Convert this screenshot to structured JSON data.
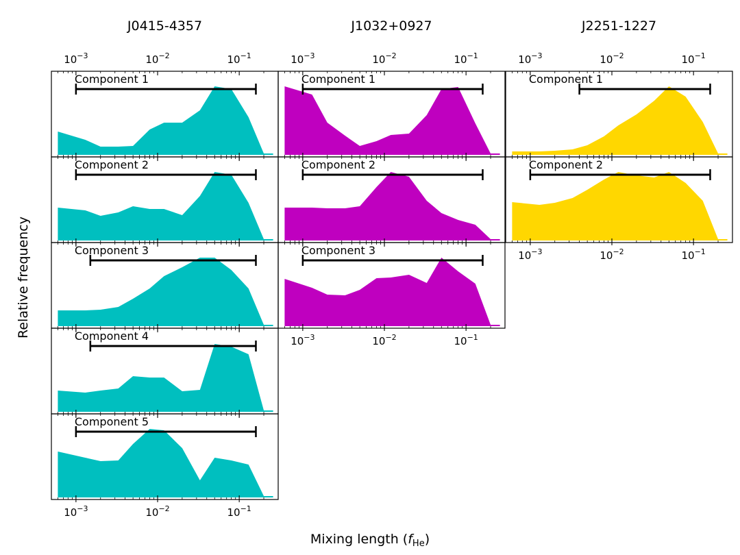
{
  "figure": {
    "ylabel": "Relative frequency",
    "xlabel_main": "Mixing length (",
    "xlabel_symbol": "f",
    "xlabel_sub": "He",
    "xlabel_close": ")",
    "tick_base": "10",
    "tick_exponents": [
      "−3",
      "−2",
      "−1"
    ]
  },
  "chart_data": [
    {
      "type": "area",
      "title": "J0415-4357",
      "color": "#00bfbf",
      "xscale": "log",
      "xlim": [
        0.0005,
        0.3
      ],
      "ylim": [
        0,
        1
      ],
      "components": [
        {
          "label": "Component 1",
          "range": [
            0.001,
            0.16
          ],
          "x": [
            0.0006,
            0.0013,
            0.002,
            0.0033,
            0.005,
            0.008,
            0.012,
            0.02,
            0.033,
            0.05,
            0.08,
            0.13,
            0.2,
            0.26
          ],
          "y": [
            0.34,
            0.22,
            0.12,
            0.12,
            0.13,
            0.37,
            0.47,
            0.47,
            0.65,
            1.0,
            0.96,
            0.55,
            0.02,
            0.02
          ]
        },
        {
          "label": "Component 2",
          "range": [
            0.001,
            0.16
          ],
          "x": [
            0.0006,
            0.0013,
            0.002,
            0.0033,
            0.005,
            0.008,
            0.012,
            0.02,
            0.033,
            0.05,
            0.08,
            0.13,
            0.2,
            0.26
          ],
          "y": [
            0.48,
            0.44,
            0.36,
            0.41,
            0.5,
            0.46,
            0.46,
            0.37,
            0.65,
            1.0,
            0.96,
            0.55,
            0.02,
            0.02
          ]
        },
        {
          "label": "Component 3",
          "range": [
            0.0015,
            0.16
          ],
          "x": [
            0.0006,
            0.0013,
            0.002,
            0.0033,
            0.005,
            0.008,
            0.012,
            0.02,
            0.033,
            0.05,
            0.08,
            0.13,
            0.2,
            0.26
          ],
          "y": [
            0.23,
            0.23,
            0.24,
            0.28,
            0.4,
            0.55,
            0.73,
            0.86,
            1.0,
            1.0,
            0.82,
            0.55,
            0.02,
            0.02
          ]
        },
        {
          "label": "Component 4",
          "range": [
            0.0015,
            0.16
          ],
          "x": [
            0.0006,
            0.0013,
            0.002,
            0.0033,
            0.005,
            0.008,
            0.012,
            0.02,
            0.033,
            0.05,
            0.08,
            0.13,
            0.2,
            0.26
          ],
          "y": [
            0.31,
            0.28,
            0.31,
            0.34,
            0.52,
            0.5,
            0.5,
            0.3,
            0.32,
            0.99,
            0.95,
            0.84,
            0.02,
            0.02
          ]
        },
        {
          "label": "Component 5",
          "range": [
            0.001,
            0.16
          ],
          "x": [
            0.0006,
            0.0013,
            0.002,
            0.0033,
            0.005,
            0.008,
            0.012,
            0.02,
            0.033,
            0.05,
            0.08,
            0.13,
            0.2,
            0.26
          ],
          "y": [
            0.67,
            0.58,
            0.53,
            0.54,
            0.78,
            1.0,
            0.98,
            0.72,
            0.25,
            0.58,
            0.54,
            0.48,
            0.02,
            0.02
          ]
        }
      ]
    },
    {
      "type": "area",
      "title": "J1032+0927",
      "color": "#bf00bf",
      "xscale": "log",
      "xlim": [
        0.0005,
        0.3
      ],
      "ylim": [
        0,
        1
      ],
      "components": [
        {
          "label": "Component 1",
          "range": [
            0.001,
            0.16
          ],
          "x": [
            0.0006,
            0.0013,
            0.002,
            0.0033,
            0.005,
            0.008,
            0.012,
            0.02,
            0.033,
            0.05,
            0.08,
            0.13,
            0.2,
            0.26
          ],
          "y": [
            1.0,
            0.88,
            0.47,
            0.28,
            0.13,
            0.2,
            0.29,
            0.31,
            0.58,
            0.96,
            0.99,
            0.46,
            0.02,
            0.02
          ]
        },
        {
          "label": "Component 2",
          "range": [
            0.001,
            0.16
          ],
          "x": [
            0.0006,
            0.0013,
            0.002,
            0.0033,
            0.005,
            0.008,
            0.012,
            0.02,
            0.033,
            0.05,
            0.08,
            0.13,
            0.2,
            0.26
          ],
          "y": [
            0.48,
            0.48,
            0.47,
            0.47,
            0.5,
            0.78,
            1.0,
            0.93,
            0.58,
            0.4,
            0.3,
            0.23,
            0.02,
            0.02
          ]
        },
        {
          "label": "Component 3",
          "range": [
            0.001,
            0.16
          ],
          "x": [
            0.0006,
            0.0013,
            0.002,
            0.0033,
            0.005,
            0.008,
            0.012,
            0.02,
            0.033,
            0.05,
            0.08,
            0.13,
            0.2,
            0.26
          ],
          "y": [
            0.69,
            0.56,
            0.46,
            0.45,
            0.53,
            0.7,
            0.71,
            0.75,
            0.63,
            1.0,
            0.8,
            0.62,
            0.02,
            0.02
          ]
        }
      ]
    },
    {
      "type": "area",
      "title": "J2251-1227",
      "color": "#ffd700",
      "xscale": "log",
      "xlim": [
        0.0005,
        0.3
      ],
      "ylim": [
        0,
        1
      ],
      "components": [
        {
          "label": "Component 1",
          "range": [
            0.004,
            0.16
          ],
          "x": [
            0.0006,
            0.0013,
            0.002,
            0.0033,
            0.005,
            0.008,
            0.012,
            0.02,
            0.033,
            0.05,
            0.08,
            0.13,
            0.2,
            0.26
          ],
          "y": [
            0.05,
            0.05,
            0.06,
            0.08,
            0.14,
            0.27,
            0.43,
            0.59,
            0.79,
            1.0,
            0.85,
            0.48,
            0.02,
            0.02
          ]
        },
        {
          "label": "Component 2",
          "range": [
            0.001,
            0.16
          ],
          "x": [
            0.0006,
            0.0013,
            0.002,
            0.0033,
            0.005,
            0.008,
            0.012,
            0.02,
            0.033,
            0.05,
            0.08,
            0.13,
            0.2,
            0.26
          ],
          "y": [
            0.56,
            0.52,
            0.55,
            0.62,
            0.74,
            0.89,
            1.0,
            0.95,
            0.92,
            1.0,
            0.84,
            0.58,
            0.02,
            0.02
          ]
        }
      ]
    }
  ]
}
